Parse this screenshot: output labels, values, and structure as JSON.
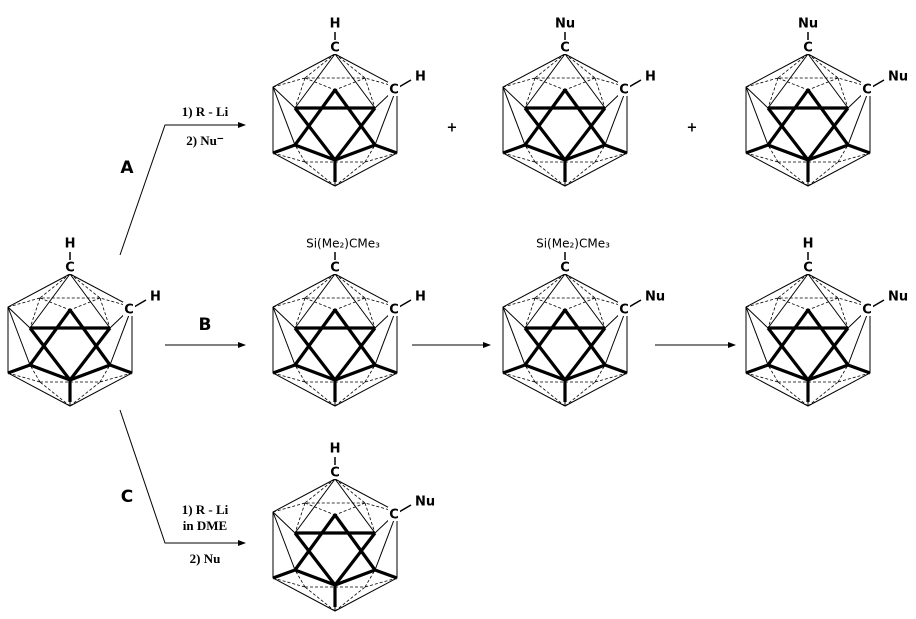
{
  "routes": [
    {
      "label": "A",
      "reagents": [
        "1) R - Li",
        "2) Nu⁻"
      ]
    },
    {
      "label": "B"
    },
    {
      "label": "C",
      "reagents": [
        "1) R - Li",
        "in DME",
        "2) Nu"
      ]
    }
  ],
  "plus_signs": [
    "+",
    "+"
  ],
  "molecules": [
    {
      "top_substituent": "H",
      "top_atom": "C",
      "side_atom": "C",
      "side_substituent": "H"
    },
    {
      "top_substituent": "H",
      "top_atom": "C",
      "side_atom": "C",
      "side_substituent": "H"
    },
    {
      "top_substituent": "Nu",
      "top_atom": "C",
      "side_atom": "C",
      "side_substituent": "H"
    },
    {
      "top_substituent": "Nu",
      "top_atom": "C",
      "side_atom": "C",
      "side_substituent": "Nu"
    },
    {
      "top_substituent": "Si(Me₂)CMe₃",
      "top_atom": "C",
      "side_atom": "C",
      "side_substituent": "H"
    },
    {
      "top_substituent": "Si(Me₂)CMe₃",
      "top_atom": "C",
      "side_atom": "C",
      "side_substituent": "Nu"
    },
    {
      "top_substituent": "H",
      "top_atom": "C",
      "side_atom": "C",
      "side_substituent": "Nu"
    },
    {
      "top_substituent": "H",
      "top_atom": "C",
      "side_atom": "C",
      "side_substituent": "Nu"
    }
  ]
}
